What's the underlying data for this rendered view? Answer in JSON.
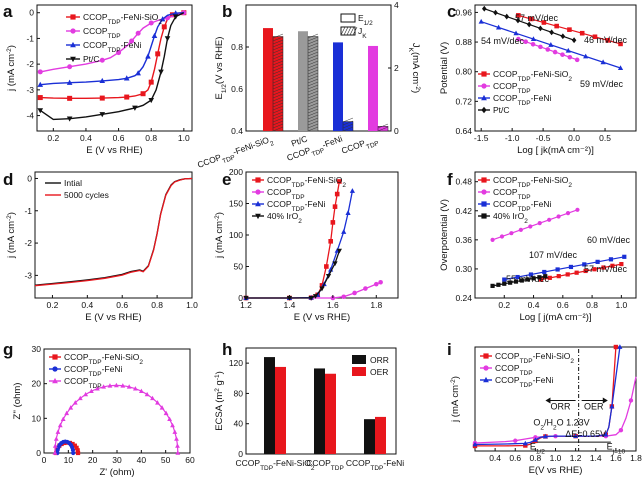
{
  "figure": {
    "panels": [
      "a",
      "b",
      "c",
      "d",
      "e",
      "f",
      "g",
      "h",
      "i"
    ]
  },
  "chart_data": [
    {
      "id": "a",
      "type": "line",
      "xlabel": "E (V vs RHE)",
      "ylabel": "j (mA cm⁻²)",
      "xlim": [
        0.1,
        1.05
      ],
      "ylim": [
        -4.6,
        0.3
      ],
      "xticks": [
        "0.2",
        "0.4",
        "0.6",
        "0.8",
        "1.0"
      ],
      "yticks": [
        "0",
        "-1",
        "-2",
        "-3",
        "-4"
      ],
      "series": [
        {
          "name": "CCOP_TDP-FeNi-SiO2",
          "color": "#e8161d",
          "marker": "square",
          "x": [
            0.12,
            0.2,
            0.3,
            0.4,
            0.5,
            0.6,
            0.65,
            0.7,
            0.75,
            0.78,
            0.8,
            0.82,
            0.84,
            0.86,
            0.88,
            0.9,
            0.93,
            0.96,
            1.0
          ],
          "y": [
            -3.3,
            -3.32,
            -3.33,
            -3.33,
            -3.32,
            -3.3,
            -3.28,
            -3.24,
            -3.15,
            -3.0,
            -2.7,
            -2.2,
            -1.6,
            -1.0,
            -0.55,
            -0.25,
            -0.08,
            -0.02,
            0.0
          ]
        },
        {
          "name": "CCOP_TDP",
          "color": "#e23be0",
          "marker": "circle",
          "x": [
            0.12,
            0.2,
            0.3,
            0.4,
            0.5,
            0.55,
            0.6,
            0.65,
            0.68,
            0.7,
            0.72,
            0.75,
            0.8,
            0.85,
            0.9,
            0.95,
            1.0
          ],
          "y": [
            -2.3,
            -2.2,
            -2.1,
            -2.0,
            -1.85,
            -1.75,
            -1.55,
            -1.3,
            -1.1,
            -0.95,
            -0.8,
            -0.6,
            -0.4,
            -0.28,
            -0.2,
            -0.1,
            0.0
          ]
        },
        {
          "name": "CCOP_TDP-FeNi",
          "color": "#1a2fd6",
          "marker": "triangle",
          "x": [
            0.12,
            0.2,
            0.3,
            0.4,
            0.5,
            0.6,
            0.65,
            0.7,
            0.72,
            0.75,
            0.78,
            0.8,
            0.82,
            0.84,
            0.87,
            0.9,
            0.95,
            1.0
          ],
          "y": [
            -2.8,
            -2.75,
            -2.72,
            -2.7,
            -2.65,
            -2.6,
            -2.55,
            -2.45,
            -2.35,
            -2.1,
            -1.7,
            -1.3,
            -0.9,
            -0.55,
            -0.25,
            -0.1,
            -0.02,
            0.0
          ]
        },
        {
          "name": "Pt/C",
          "color": "#111111",
          "marker": "triangle-down",
          "x": [
            0.12,
            0.2,
            0.3,
            0.4,
            0.5,
            0.6,
            0.7,
            0.75,
            0.8,
            0.83,
            0.86,
            0.88,
            0.9,
            0.92,
            0.95,
            1.0
          ],
          "y": [
            -3.8,
            -4.15,
            -4.12,
            -4.05,
            -3.95,
            -3.85,
            -3.7,
            -3.6,
            -3.4,
            -3.0,
            -2.3,
            -1.7,
            -1.0,
            -0.5,
            -0.15,
            0.0
          ]
        }
      ]
    },
    {
      "id": "b",
      "type": "bar",
      "ylabel": "E1/2 (V vs RHE)",
      "ylabel_right": "Jk (mA cm⁻²)",
      "ylim": [
        0.4,
        1.0
      ],
      "ylim_right": [
        0,
        4
      ],
      "yticks": [
        "0.4",
        "0.8"
      ],
      "yticks_mid": [
        "0.6"
      ],
      "yticks_right": [
        "0",
        "2",
        "4"
      ],
      "categories": [
        "CCOP_TDP-FeNi-SiO2",
        "Pt/C",
        "CCOP_TDP-FeNi",
        "CCOP_TDP"
      ],
      "colors": [
        "#e8161d",
        "#9a9a9a",
        "#1a2fd6",
        "#e23be0"
      ],
      "E_half": [
        0.89,
        0.875,
        0.822,
        0.805
      ],
      "Jk": [
        3.0,
        3.0,
        0.3,
        0.15
      ],
      "legend": [
        "E1/2",
        "JK"
      ]
    },
    {
      "id": "c",
      "type": "line",
      "xlabel": "Log [ jk(mA cm⁻²)]",
      "ylabel": "Potential (V)",
      "xlim": [
        -1.6,
        1.0
      ],
      "ylim": [
        0.64,
        0.98
      ],
      "xticks": [
        "-1.5",
        "-1.0",
        "-0.5",
        "0.0",
        "0.5"
      ],
      "yticks": [
        "0.96",
        "0.88",
        "0.80",
        "0.72",
        "0.64"
      ],
      "annotations": [
        "57 mV/dec",
        "46 mV/dec",
        "54 mV/dec",
        "59 mV/dec"
      ],
      "series": [
        {
          "name": "CCOP_TDP-FeNi-SiO2",
          "color": "#e8161d",
          "marker": "square",
          "x": [
            -0.9,
            0.75
          ],
          "y": [
            0.952,
            0.875
          ]
        },
        {
          "name": "CCOP_TDP",
          "color": "#e23be0",
          "marker": "circle",
          "x": [
            -0.9,
            0.05
          ],
          "y": [
            0.888,
            0.832
          ]
        },
        {
          "name": "CCOP_TDP-FeNi",
          "color": "#1a2fd6",
          "marker": "triangle",
          "x": [
            -1.5,
            0.75
          ],
          "y": [
            0.935,
            0.81
          ]
        },
        {
          "name": "Pt/C",
          "color": "#111111",
          "marker": "diamond",
          "x": [
            -1.45,
            0.0
          ],
          "y": [
            0.97,
            0.885
          ]
        }
      ]
    },
    {
      "id": "d",
      "type": "line",
      "xlabel": "E (V vs RHE)",
      "ylabel": "j (mA cm⁻²)",
      "xlim": [
        0.1,
        1.0
      ],
      "ylim": [
        -3.7,
        0.2
      ],
      "xticks": [
        "0.2",
        "0.4",
        "0.6",
        "0.8",
        "1.0"
      ],
      "yticks": [
        "0",
        "-1",
        "-2",
        "-3"
      ],
      "series": [
        {
          "name": "Intial",
          "color": "#111111",
          "x": [
            0.1,
            0.2,
            0.3,
            0.4,
            0.5,
            0.6,
            0.65,
            0.7,
            0.72,
            0.75,
            0.78,
            0.8,
            0.82,
            0.85,
            0.88,
            0.9,
            0.93,
            0.96,
            1.0
          ],
          "y": [
            -3.3,
            -3.25,
            -3.2,
            -3.14,
            -3.07,
            -2.97,
            -2.88,
            -2.83,
            -2.87,
            -2.7,
            -2.2,
            -1.7,
            -1.1,
            -0.5,
            -0.2,
            -0.1,
            -0.04,
            -0.01,
            0.0
          ]
        },
        {
          "name": "5000 cycles",
          "color": "#e8161d",
          "x": [
            0.1,
            0.2,
            0.3,
            0.4,
            0.5,
            0.6,
            0.65,
            0.7,
            0.72,
            0.75,
            0.78,
            0.8,
            0.82,
            0.85,
            0.88,
            0.9,
            0.93,
            0.96,
            1.0
          ],
          "y": [
            -3.32,
            -3.27,
            -3.22,
            -3.16,
            -3.09,
            -2.99,
            -2.9,
            -2.85,
            -2.89,
            -2.72,
            -2.22,
            -1.72,
            -1.12,
            -0.52,
            -0.22,
            -0.11,
            -0.05,
            -0.01,
            0.0
          ]
        }
      ]
    },
    {
      "id": "e",
      "type": "line",
      "xlabel": "E (V vs RHE)",
      "ylabel": "j (mA cm⁻²)",
      "xlim": [
        1.2,
        1.9
      ],
      "ylim": [
        0,
        200
      ],
      "xticks": [
        "1.2",
        "1.4",
        "1.6",
        "1.8"
      ],
      "yticks": [
        "0",
        "50",
        "100",
        "150",
        "200"
      ],
      "series": [
        {
          "name": "CCOP_TDP-FeNi-SiO2",
          "color": "#e8161d",
          "marker": "square",
          "x": [
            1.2,
            1.4,
            1.5,
            1.53,
            1.55,
            1.57,
            1.59,
            1.6,
            1.61,
            1.62,
            1.63
          ],
          "y": [
            0,
            0,
            0.5,
            5,
            20,
            50,
            90,
            120,
            145,
            165,
            185
          ]
        },
        {
          "name": "CCOP_TDP",
          "color": "#e23be0",
          "marker": "circle",
          "x": [
            1.2,
            1.5,
            1.6,
            1.65,
            1.7,
            1.75,
            1.8,
            1.82
          ],
          "y": [
            0,
            0,
            0,
            2,
            8,
            15,
            22,
            25
          ]
        },
        {
          "name": "CCOP_TDP-FeNi",
          "color": "#1a2fd6",
          "marker": "triangle",
          "x": [
            1.2,
            1.4,
            1.5,
            1.53,
            1.56,
            1.59,
            1.62,
            1.65,
            1.67,
            1.69
          ],
          "y": [
            0,
            0,
            0.5,
            5,
            22,
            45,
            75,
            105,
            135,
            170
          ]
        },
        {
          "name": "40% IrO2",
          "color": "#111111",
          "marker": "triangle-down",
          "x": [
            1.2,
            1.4,
            1.5,
            1.52,
            1.55,
            1.58,
            1.61,
            1.63
          ],
          "y": [
            0,
            0,
            0,
            3,
            15,
            35,
            55,
            75
          ]
        }
      ]
    },
    {
      "id": "f",
      "type": "line",
      "xlabel": "Log [ j(mA cm⁻²)]",
      "ylabel": "Overpotential (V)",
      "xlim": [
        0.0,
        1.1
      ],
      "ylim": [
        0.24,
        0.5
      ],
      "xticks": [
        "0.2",
        "0.4",
        "0.6",
        "0.8",
        "1.0"
      ],
      "yticks": [
        "0.48",
        "0.42",
        "0.36",
        "0.30",
        "0.24"
      ],
      "annotations": [
        "107 mV/dec",
        "60 mV/dec",
        "57 mV/dec",
        "55 mV/dec"
      ],
      "series": [
        {
          "name": "CCOP_TDP-FeNi-SiO2",
          "color": "#e8161d",
          "marker": "square",
          "x": [
            0.45,
            1.0
          ],
          "y": [
            0.278,
            0.31
          ]
        },
        {
          "name": "CCOP_TDP",
          "color": "#e23be0",
          "marker": "circle",
          "x": [
            0.12,
            0.7
          ],
          "y": [
            0.36,
            0.422
          ]
        },
        {
          "name": "CCOP_TDP-FeNi",
          "color": "#1a2fd6",
          "marker": "square",
          "x": [
            0.2,
            1.02
          ],
          "y": [
            0.278,
            0.325
          ]
        },
        {
          "name": "40% IrO2",
          "color": "#111111",
          "marker": "square",
          "x": [
            0.12,
            0.48
          ],
          "y": [
            0.265,
            0.285
          ]
        }
      ]
    },
    {
      "id": "g",
      "type": "scatter",
      "xlabel": "Z' (ohm)",
      "ylabel": "Z'' (ohm)",
      "xlim": [
        0,
        60
      ],
      "ylim": [
        0,
        30
      ],
      "xticks": [
        "0",
        "10",
        "20",
        "30",
        "40",
        "50",
        "60"
      ],
      "yticks": [
        "0",
        "10",
        "20",
        "30"
      ],
      "series": [
        {
          "name": "CCOP_TDP-FeNi-SiO2",
          "color": "#e8161d",
          "marker": "square",
          "arc": {
            "x0": 5,
            "x1": 14,
            "h": 3.0
          }
        },
        {
          "name": "CCOP_TDP-FeNi",
          "color": "#1a2fd6",
          "marker": "circle",
          "arc": {
            "x0": 5.5,
            "x1": 12,
            "h": 3.3
          }
        },
        {
          "name": "CCOP_TDP",
          "color": "#e23be0",
          "marker": "triangle",
          "arc": {
            "x0": 4.5,
            "x1": 55,
            "h": 19.5
          }
        }
      ]
    },
    {
      "id": "h",
      "type": "bar",
      "ylabel": "ECSA (m² g⁻¹)",
      "ylim": [
        0,
        140
      ],
      "yticks": [
        "0",
        "40",
        "80",
        "120"
      ],
      "categories": [
        "CCOP_TDP-FeNi-SiO2",
        "CCOP_TDP",
        "CCOP_TDP-FeNi"
      ],
      "series": [
        {
          "name": "ORR",
          "color": "#111111",
          "values": [
            128,
            113,
            46
          ]
        },
        {
          "name": "OER",
          "color": "#e8161d",
          "values": [
            115,
            106,
            49
          ]
        }
      ]
    },
    {
      "id": "i",
      "type": "line",
      "xlabel": "E(V vs RHE)",
      "ylabel": "j (mA cm⁻²)",
      "xlim": [
        0.2,
        1.8
      ],
      "ylim": [
        -5,
        30
      ],
      "xticks": [
        "0.4",
        "0.6",
        "0.8",
        "1.0",
        "1.2",
        "1.4",
        "1.6",
        "1.8"
      ],
      "annotations": {
        "orr": "ORR",
        "oer": "OER",
        "o2": "O2/H2O 1.23V",
        "dE": "ΔE=0.65V",
        "e_half": "E1/2",
        "e_j10": "Ej=10"
      },
      "series": [
        {
          "name": "CCOP_TDP-FeNi-SiO2",
          "color": "#e8161d",
          "marker": "square"
        },
        {
          "name": "CCOP_TDP",
          "color": "#e23be0",
          "marker": "circle"
        },
        {
          "name": "CCOP_TDP-FeNi",
          "color": "#1a2fd6",
          "marker": "triangle"
        }
      ]
    }
  ]
}
